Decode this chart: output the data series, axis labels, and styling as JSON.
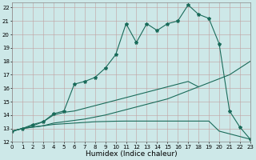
{
  "xlabel": "Humidex (Indice chaleur)",
  "x_values": [
    0,
    1,
    2,
    3,
    4,
    5,
    6,
    7,
    8,
    9,
    10,
    11,
    12,
    13,
    14,
    15,
    16,
    17,
    18,
    19,
    20,
    21,
    22,
    23
  ],
  "line1": [
    12.8,
    13.0,
    13.3,
    13.5,
    14.1,
    14.3,
    16.3,
    16.5,
    16.8,
    17.5,
    18.5,
    20.8,
    19.4,
    20.8,
    20.3,
    20.8,
    21.0,
    22.2,
    21.5,
    21.2,
    19.3,
    14.3,
    13.1,
    12.2
  ],
  "line2": [
    12.8,
    13.0,
    13.1,
    13.2,
    13.4,
    13.5,
    13.6,
    13.7,
    13.85,
    14.0,
    14.2,
    14.4,
    14.6,
    14.8,
    15.0,
    15.2,
    15.5,
    15.8,
    16.1,
    16.4,
    16.7,
    17.0,
    17.5,
    18.0
  ],
  "line3": [
    12.8,
    13.0,
    13.1,
    13.2,
    13.3,
    13.35,
    13.4,
    13.45,
    13.5,
    13.52,
    13.54,
    13.55,
    13.55,
    13.55,
    13.55,
    13.55,
    13.55,
    13.55,
    13.55,
    13.55,
    12.8,
    12.6,
    12.4,
    12.2
  ],
  "line4": [
    12.8,
    13.0,
    13.2,
    13.5,
    14.0,
    14.2,
    14.3,
    14.5,
    14.7,
    14.9,
    15.1,
    15.3,
    15.5,
    15.7,
    15.9,
    16.1,
    16.3,
    16.5,
    16.1,
    null,
    null,
    null,
    null,
    null
  ],
  "bg_color": "#cde8e8",
  "grid_color_minor": "#b8c8c8",
  "grid_color_major": "#b0b8b8",
  "line_color": "#1a6b5a",
  "marker": "*",
  "markersize": 3,
  "linewidth": 0.8,
  "xlim": [
    0,
    23
  ],
  "ylim": [
    12,
    22.4
  ],
  "yticks": [
    12,
    13,
    14,
    15,
    16,
    17,
    18,
    19,
    20,
    21,
    22
  ],
  "xticks": [
    0,
    1,
    2,
    3,
    4,
    5,
    6,
    7,
    8,
    9,
    10,
    11,
    12,
    13,
    14,
    15,
    16,
    17,
    18,
    19,
    20,
    21,
    22,
    23
  ],
  "tick_fontsize": 5,
  "xlabel_fontsize": 6.5
}
